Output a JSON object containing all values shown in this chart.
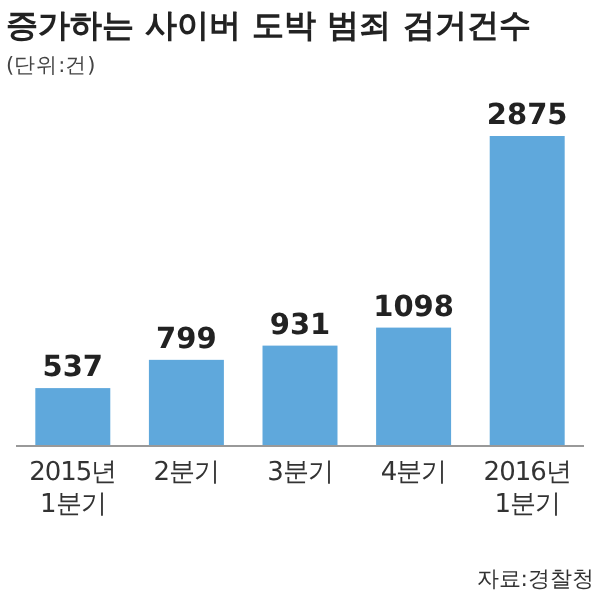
{
  "chart_data": {
    "type": "bar",
    "title": "증가하는 사이버 도박 범죄 검거건수",
    "subtitle": "(단위:건)",
    "categories": [
      "2015년 1분기",
      "2분기",
      "3분기",
      "4분기",
      "2016년 1분기"
    ],
    "values": [
      537,
      799,
      931,
      1098,
      2875
    ],
    "color": "#5fa8dc",
    "data_labels": true,
    "annotations": [
      "자료:경찰청"
    ]
  }
}
